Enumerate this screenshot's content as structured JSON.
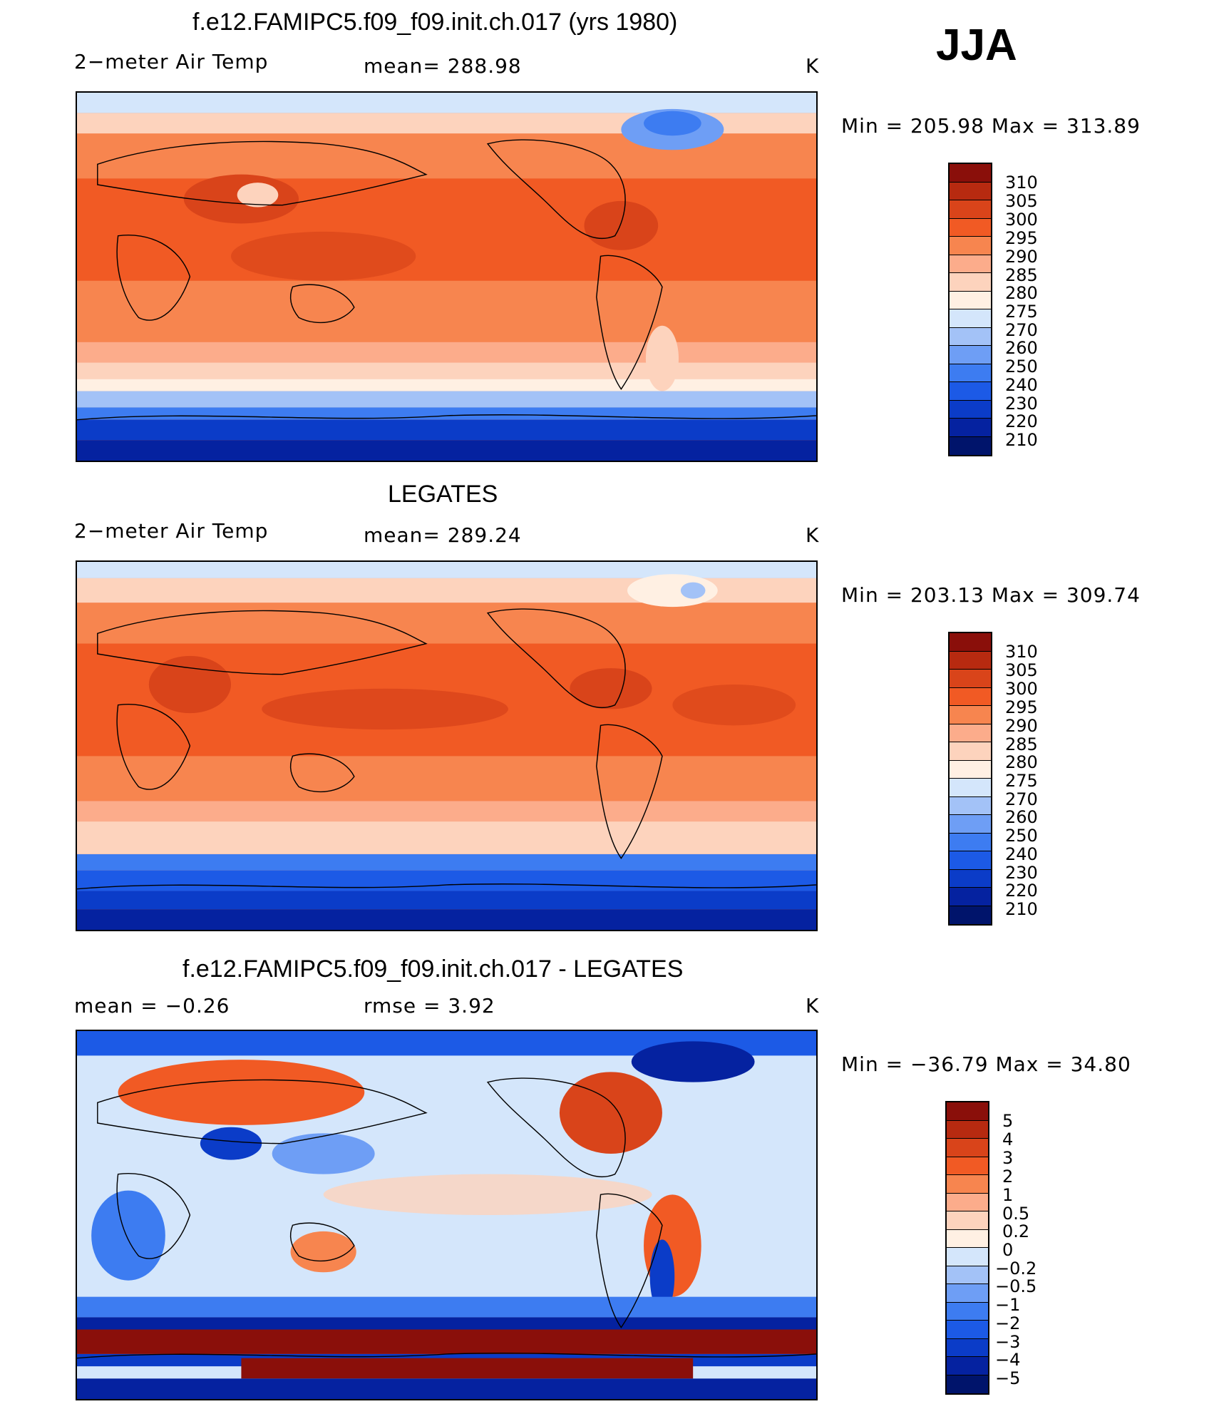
{
  "season": "JJA",
  "palette": {
    "temp": [
      "#00146b",
      "#0522a0",
      "#0b3cc8",
      "#1c5ae6",
      "#3d7cf1",
      "#6e9ef5",
      "#a3c2f7",
      "#d4e6fb",
      "#fff0e3",
      "#fdd3bd",
      "#fcac8b",
      "#f7854f",
      "#f15a24",
      "#d9441a",
      "#b72a10",
      "#8a0f0a"
    ],
    "diff": [
      "#00146b",
      "#0522a0",
      "#0b3cc8",
      "#1c5ae6",
      "#3d7cf1",
      "#6e9ef5",
      "#a3c2f7",
      "#d4e6fb",
      "#fff0e3",
      "#fdd3bd",
      "#fcac8b",
      "#f7854f",
      "#f15a24",
      "#d9441a",
      "#b72a10",
      "#8a0f0a"
    ]
  },
  "panels": [
    {
      "title": "f.e12.FAMIPC5.f09_f09.init.ch.017 (yrs 1980)",
      "left_label": "2−meter Air Temp",
      "center_label": "mean=  288.98",
      "units": "K",
      "minmax": "Min  =  205.98  Max  =  313.89",
      "colorbar_labels": [
        "310",
        "305",
        "300",
        "295",
        "290",
        "285",
        "280",
        "275",
        "270",
        "260",
        "250",
        "240",
        "230",
        "220",
        "210"
      ]
    },
    {
      "title": "LEGATES",
      "left_label": "2−meter Air Temp",
      "center_label": "mean=  289.24",
      "units": "K",
      "minmax": "Min  =  203.13  Max  =  309.74",
      "colorbar_labels": [
        "310",
        "305",
        "300",
        "295",
        "290",
        "285",
        "280",
        "275",
        "270",
        "260",
        "250",
        "240",
        "230",
        "220",
        "210"
      ]
    },
    {
      "title": "f.e12.FAMIPC5.f09_f09.init.ch.017 - LEGATES",
      "left_label": "mean  =     −0.26",
      "center_label": "rmse  =     3.92",
      "units": "K",
      "minmax": "Min  =  −36.79  Max  =     34.80",
      "colorbar_labels": [
        "5",
        "4",
        "3",
        "2",
        "1",
        "0.5",
        "0.2",
        "0",
        "−0.2",
        "−0.5",
        "−1",
        "−2",
        "−3",
        "−4",
        "−5"
      ]
    }
  ]
}
